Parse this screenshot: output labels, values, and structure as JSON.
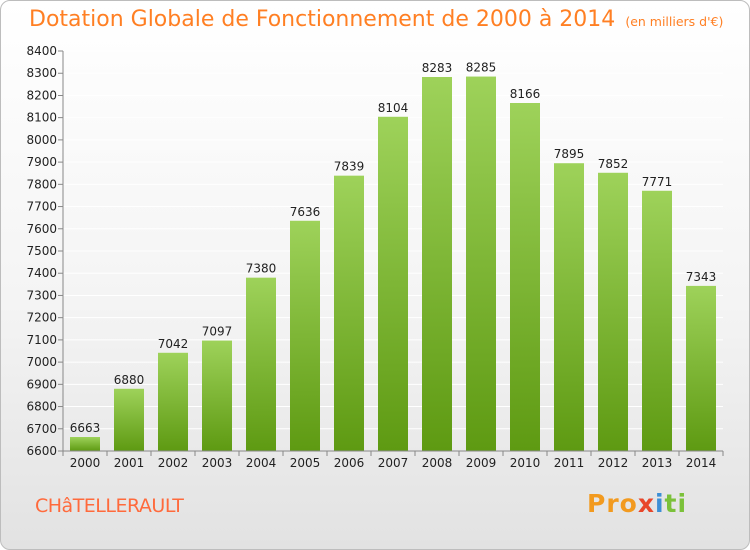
{
  "header": {
    "title": "Dotation Globale de Fonctionnement de 2000 à 2014",
    "subtitle": "(en milliers d'€)"
  },
  "footer": {
    "commune": "CHâTELLERAULT",
    "logo_parts": [
      "Pro",
      "x",
      "i",
      "ti"
    ]
  },
  "colors": {
    "bar_top": "#9ed25a",
    "bar_bottom": "#5e9a12",
    "title": "#ff7f23",
    "grid": "#ffffff"
  },
  "chart_data": {
    "type": "bar",
    "title": "Dotation Globale de Fonctionnement de 2000 à 2014",
    "subtitle": "(en milliers d'€)",
    "categories": [
      "2000",
      "2001",
      "2002",
      "2003",
      "2004",
      "2005",
      "2006",
      "2007",
      "2008",
      "2009",
      "2010",
      "2011",
      "2012",
      "2013",
      "2014"
    ],
    "values": [
      6663,
      6880,
      7042,
      7097,
      7380,
      7636,
      7839,
      8104,
      8283,
      8285,
      8166,
      7895,
      7852,
      7771,
      7343
    ],
    "ylim": [
      6600,
      8400
    ],
    "yticks": [
      6600,
      6700,
      6800,
      6900,
      7000,
      7100,
      7200,
      7300,
      7400,
      7500,
      7600,
      7700,
      7800,
      7900,
      8000,
      8100,
      8200,
      8300,
      8400
    ],
    "grid": true,
    "data_labels": true,
    "xlabel": "",
    "ylabel": ""
  }
}
